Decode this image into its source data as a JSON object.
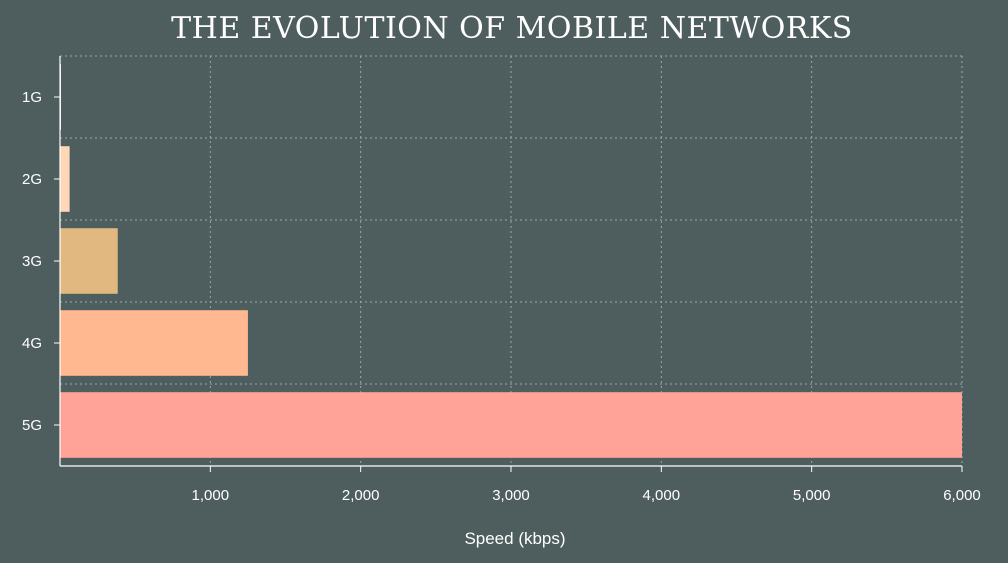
{
  "chart_data": {
    "type": "bar",
    "orientation": "horizontal",
    "title": "THE EVOLUTION OF MOBILE NETWORKS",
    "xlabel": "Speed (kbps)",
    "ylabel": "",
    "categories": [
      "1G",
      "2G",
      "3G",
      "4G",
      "5G"
    ],
    "values": [
      2.4,
      64,
      384,
      1250,
      6000
    ],
    "colors": [
      "#ffd9e0",
      "#ffd6b8",
      "#e0b880",
      "#ffb890",
      "#ffa398"
    ],
    "xlim": [
      0,
      6000
    ],
    "xticks": [
      1000,
      2000,
      3000,
      4000,
      5000,
      6000
    ],
    "xtick_labels": [
      "1,000",
      "2,000",
      "3,000",
      "4,000",
      "5,000",
      "6,000"
    ],
    "grid": true,
    "background": "#4e5e5e"
  }
}
